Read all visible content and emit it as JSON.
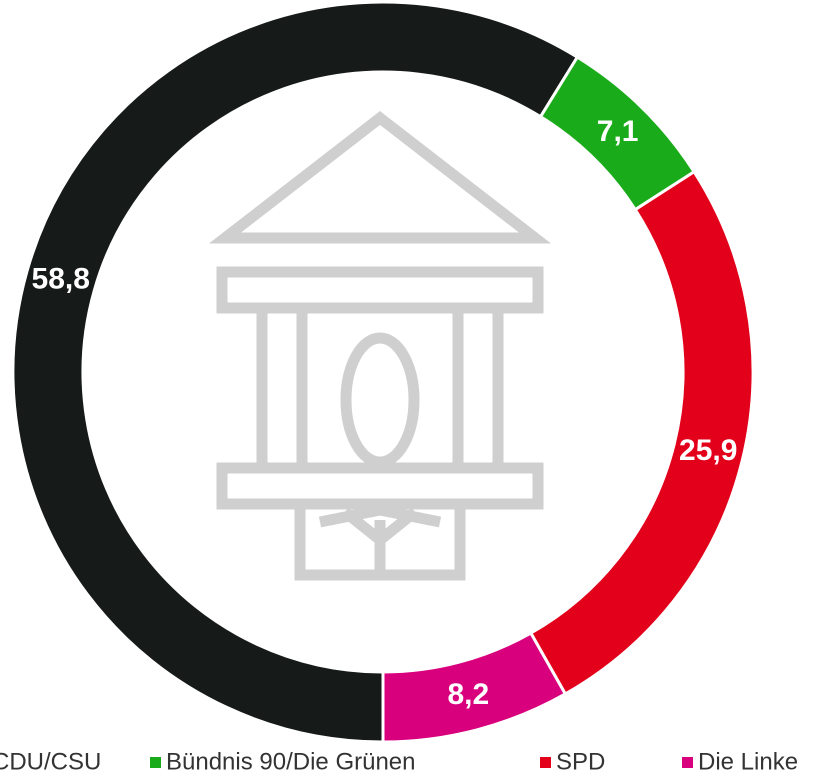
{
  "chart_data": {
    "type": "donut",
    "categories": [
      "CDU/CSU",
      "Bündnis 90/Die Grünen",
      "SPD",
      "Die Linke"
    ],
    "values": [
      58.8,
      7.1,
      25.9,
      8.2
    ],
    "value_labels": [
      "58,8",
      "7,1",
      "25,9",
      "8,2"
    ],
    "colors": [
      "#161a18",
      "#1aab1a",
      "#e2001a",
      "#d9007e"
    ],
    "legend": "bottom"
  }
}
